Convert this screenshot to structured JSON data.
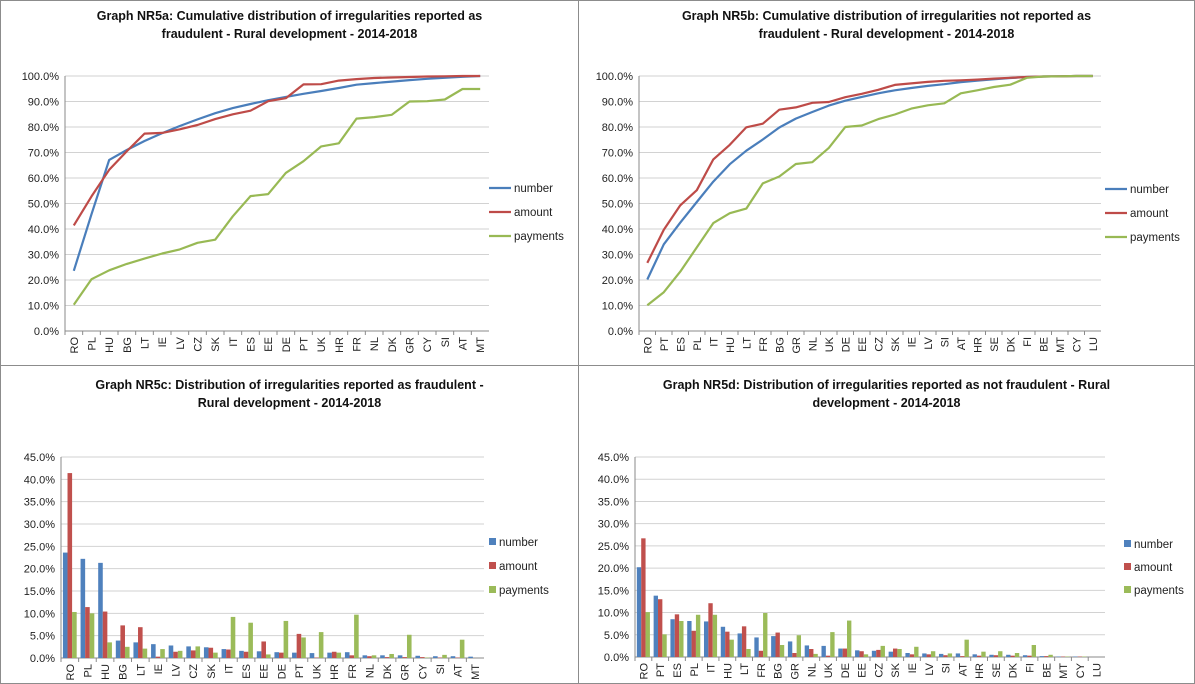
{
  "chart_data": [
    {
      "type": "line",
      "title": "Graph NR5a: Cumulative distribution of irregularities reported as\nfraudulent - Rural development - 2014-2018",
      "categories": [
        "RO",
        "PL",
        "HU",
        "BG",
        "LT",
        "IE",
        "LV",
        "CZ",
        "SK",
        "IT",
        "ES",
        "EE",
        "DE",
        "PT",
        "UK",
        "HR",
        "FR",
        "NL",
        "DK",
        "GR",
        "CY",
        "SI",
        "AT",
        "MT"
      ],
      "ylim": [
        0,
        100
      ],
      "yticks": [
        "0.0%",
        "10.0%",
        "20.0%",
        "30.0%",
        "40.0%",
        "50.0%",
        "60.0%",
        "70.0%",
        "80.0%",
        "90.0%",
        "100.0%"
      ],
      "legend_position": "right",
      "grid": true,
      "series": [
        {
          "name": "number",
          "color": "#4a7ebb",
          "values": [
            23.6,
            45.8,
            67.1,
            71.0,
            74.5,
            77.6,
            80.4,
            83.0,
            85.4,
            87.4,
            89.0,
            90.5,
            91.8,
            93.0,
            94.1,
            95.3,
            96.6,
            97.2,
            97.8,
            98.4,
            98.9,
            99.3,
            99.7,
            100.0
          ]
        },
        {
          "name": "amount",
          "color": "#be4b48",
          "values": [
            41.4,
            52.8,
            63.2,
            70.5,
            77.4,
            77.7,
            79.1,
            80.8,
            83.1,
            85.0,
            86.4,
            90.1,
            91.3,
            96.7,
            96.8,
            98.2,
            98.8,
            99.2,
            99.4,
            99.6,
            99.8,
            99.9,
            100.0,
            100.0
          ]
        },
        {
          "name": "payments",
          "color": "#98b954",
          "values": [
            10.3,
            20.3,
            23.8,
            26.3,
            28.4,
            30.4,
            32.0,
            34.6,
            35.8,
            45.0,
            52.9,
            53.7,
            62.0,
            66.6,
            72.4,
            73.6,
            83.3,
            83.9,
            84.8,
            90.0,
            90.1,
            90.8,
            94.9,
            94.9
          ]
        }
      ]
    },
    {
      "type": "line",
      "title": "Graph NR5b: Cumulative distribution of irregularities not reported as\nfraudulent - Rural development - 2014-2018",
      "categories": [
        "RO",
        "PT",
        "ES",
        "PL",
        "IT",
        "HU",
        "LT",
        "FR",
        "BG",
        "GR",
        "NL",
        "UK",
        "DE",
        "EE",
        "CZ",
        "SK",
        "IE",
        "LV",
        "SI",
        "AT",
        "HR",
        "SE",
        "DK",
        "FI",
        "BE",
        "MT",
        "CY",
        "LU"
      ],
      "ylim": [
        0,
        100
      ],
      "yticks": [
        "0.0%",
        "10.0%",
        "20.0%",
        "30.0%",
        "40.0%",
        "50.0%",
        "60.0%",
        "70.0%",
        "80.0%",
        "90.0%",
        "100.0%"
      ],
      "legend_position": "right",
      "grid": true,
      "series": [
        {
          "name": "number",
          "color": "#4a7ebb",
          "values": [
            20.2,
            34.0,
            42.5,
            50.6,
            58.6,
            65.4,
            70.7,
            75.1,
            79.8,
            83.3,
            85.9,
            88.4,
            90.3,
            91.8,
            93.2,
            94.4,
            95.3,
            96.1,
            96.8,
            97.6,
            98.2,
            98.7,
            99.2,
            99.6,
            99.8,
            99.9,
            100.0,
            100.0
          ]
        },
        {
          "name": "amount",
          "color": "#be4b48",
          "values": [
            26.7,
            39.7,
            49.3,
            55.2,
            67.3,
            73.0,
            79.9,
            81.3,
            86.8,
            87.7,
            89.5,
            89.8,
            91.7,
            93.0,
            94.6,
            96.5,
            97.1,
            97.7,
            98.1,
            98.3,
            98.6,
            99.0,
            99.3,
            99.6,
            99.8,
            99.9,
            100.0,
            100.0
          ]
        },
        {
          "name": "payments",
          "color": "#98b954",
          "values": [
            10.1,
            15.2,
            23.3,
            32.8,
            42.3,
            46.2,
            48.0,
            57.9,
            60.6,
            65.5,
            66.2,
            71.8,
            80.0,
            80.6,
            83.1,
            84.9,
            87.2,
            88.5,
            89.3,
            93.2,
            94.4,
            95.7,
            96.6,
            99.3,
            99.8,
            99.9,
            100.0,
            100.0
          ]
        }
      ]
    },
    {
      "type": "bar",
      "title": "Graph NR5c: Distribution of irregularities reported as fraudulent -\nRural development - 2014-2018",
      "categories": [
        "RO",
        "PL",
        "HU",
        "BG",
        "LT",
        "IE",
        "LV",
        "CZ",
        "SK",
        "IT",
        "ES",
        "EE",
        "DE",
        "PT",
        "UK",
        "HR",
        "FR",
        "NL",
        "DK",
        "GR",
        "CY",
        "SI",
        "AT",
        "MT"
      ],
      "ylim": [
        0,
        45
      ],
      "yticks": [
        "0.0%",
        "5.0%",
        "10.0%",
        "15.0%",
        "20.0%",
        "25.0%",
        "30.0%",
        "35.0%",
        "40.0%",
        "45.0%"
      ],
      "legend_position": "right",
      "grid": true,
      "series": [
        {
          "name": "number",
          "color": "#4f81bd",
          "values": [
            23.6,
            22.2,
            21.3,
            3.9,
            3.5,
            3.1,
            2.8,
            2.6,
            2.4,
            2.0,
            1.6,
            1.5,
            1.3,
            1.2,
            1.1,
            1.2,
            1.3,
            0.6,
            0.6,
            0.6,
            0.5,
            0.4,
            0.4,
            0.3
          ]
        },
        {
          "name": "amount",
          "color": "#c0504d",
          "values": [
            41.4,
            11.4,
            10.4,
            7.3,
            6.9,
            0.3,
            1.4,
            1.7,
            2.3,
            1.9,
            1.4,
            3.7,
            1.2,
            5.4,
            0.1,
            1.4,
            0.6,
            0.4,
            0.2,
            0.2,
            0.2,
            0.1,
            0.1,
            0.0
          ]
        },
        {
          "name": "payments",
          "color": "#9bbb59",
          "values": [
            10.3,
            10.0,
            3.5,
            2.5,
            2.1,
            2.0,
            1.6,
            2.6,
            1.2,
            9.2,
            7.9,
            0.8,
            8.3,
            4.6,
            5.8,
            1.2,
            9.7,
            0.6,
            0.9,
            5.2,
            0.1,
            0.7,
            4.1,
            0.0
          ]
        }
      ]
    },
    {
      "type": "bar",
      "title": "Graph NR5d: Distribution of irregularities reported as not fraudulent - Rural\ndevelopment - 2014-2018",
      "categories": [
        "RO",
        "PT",
        "ES",
        "PL",
        "IT",
        "HU",
        "LT",
        "FR",
        "BG",
        "GR",
        "NL",
        "UK",
        "DE",
        "EE",
        "CZ",
        "SK",
        "IE",
        "LV",
        "SI",
        "AT",
        "HR",
        "SE",
        "DK",
        "FI",
        "BE",
        "MT",
        "CY",
        "LU"
      ],
      "ylim": [
        0,
        45
      ],
      "yticks": [
        "0.0%",
        "5.0%",
        "10.0%",
        "15.0%",
        "20.0%",
        "25.0%",
        "30.0%",
        "35.0%",
        "40.0%",
        "45.0%"
      ],
      "legend_position": "right",
      "grid": true,
      "series": [
        {
          "name": "number",
          "color": "#4f81bd",
          "values": [
            20.2,
            13.8,
            8.5,
            8.1,
            8.0,
            6.8,
            5.3,
            4.4,
            4.7,
            3.5,
            2.6,
            2.5,
            1.9,
            1.5,
            1.4,
            1.2,
            0.9,
            0.8,
            0.7,
            0.8,
            0.6,
            0.5,
            0.5,
            0.4,
            0.2,
            0.1,
            0.1,
            0.0
          ]
        },
        {
          "name": "amount",
          "color": "#c0504d",
          "values": [
            26.7,
            13.0,
            9.6,
            5.9,
            12.1,
            5.7,
            6.9,
            1.4,
            5.5,
            0.9,
            1.8,
            0.3,
            1.9,
            1.3,
            1.6,
            1.9,
            0.6,
            0.6,
            0.4,
            0.2,
            0.3,
            0.4,
            0.3,
            0.3,
            0.2,
            0.1,
            0.1,
            0.0
          ]
        },
        {
          "name": "payments",
          "color": "#9bbb59",
          "values": [
            10.1,
            5.1,
            8.1,
            9.5,
            9.5,
            3.9,
            1.8,
            9.9,
            2.7,
            4.9,
            0.7,
            5.6,
            8.2,
            0.6,
            2.5,
            1.8,
            2.3,
            1.3,
            0.8,
            3.9,
            1.2,
            1.3,
            0.9,
            2.7,
            0.5,
            0.1,
            0.1,
            0.0
          ]
        }
      ]
    }
  ]
}
